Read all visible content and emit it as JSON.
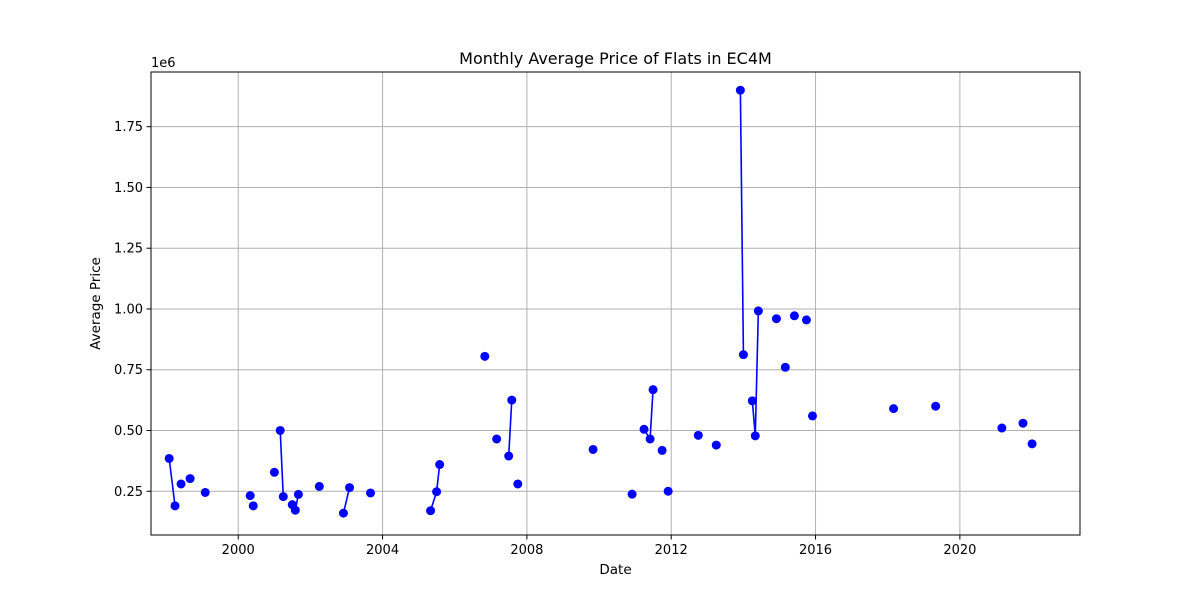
{
  "chart_data": {
    "type": "line",
    "title": "Monthly Average Price of Flats in EC4M",
    "xlabel": "Date",
    "ylabel": "Average Price",
    "y_offset_text": "1e6",
    "grid": true,
    "xlim": [
      "1997-08-01",
      "2023-05-01"
    ],
    "ylim": [
      0.07,
      1.975
    ],
    "x_ticks": [
      "2000-01-01",
      "2004-01-01",
      "2008-01-01",
      "2012-01-01",
      "2016-01-01",
      "2020-01-01"
    ],
    "x_tick_labels": [
      "2000",
      "2004",
      "2008",
      "2012",
      "2016",
      "2020"
    ],
    "y_ticks": [
      0.25,
      0.5,
      0.75,
      1.0,
      1.25,
      1.5,
      1.75
    ],
    "y_tick_labels": [
      "0.25",
      "0.50",
      "0.75",
      "1.00",
      "1.25",
      "1.50",
      "1.75"
    ],
    "series": [
      {
        "color": "#0000ff",
        "marker": "circle",
        "segments": [
          [
            [
              "1998-02-01",
              0.385
            ],
            [
              "1998-04-01",
              0.19
            ]
          ],
          [
            [
              "1998-06-01",
              0.28
            ]
          ],
          [
            [
              "1998-09-01",
              0.302
            ]
          ],
          [
            [
              "1999-02-01",
              0.245
            ]
          ],
          [
            [
              "2000-05-01",
              0.232
            ]
          ],
          [
            [
              "2000-06-01",
              0.19
            ]
          ],
          [
            [
              "2001-01-01",
              0.328
            ]
          ],
          [
            [
              "2001-03-01",
              0.5
            ],
            [
              "2001-04-01",
              0.228
            ]
          ],
          [
            [
              "2001-07-01",
              0.195
            ],
            [
              "2001-08-01",
              0.172
            ],
            [
              "2001-09-01",
              0.237
            ]
          ],
          [
            [
              "2002-04-01",
              0.27
            ]
          ],
          [
            [
              "2002-12-01",
              0.16
            ],
            [
              "2003-02-01",
              0.265
            ]
          ],
          [
            [
              "2003-09-01",
              0.243
            ]
          ],
          [
            [
              "2005-05-01",
              0.17
            ],
            [
              "2005-07-01",
              0.248
            ],
            [
              "2005-08-01",
              0.36
            ]
          ],
          [
            [
              "2006-11-01",
              0.805
            ]
          ],
          [
            [
              "2007-03-01",
              0.465
            ]
          ],
          [
            [
              "2007-07-01",
              0.395
            ],
            [
              "2007-08-01",
              0.625
            ]
          ],
          [
            [
              "2007-10-01",
              0.28
            ]
          ],
          [
            [
              "2009-11-01",
              0.422
            ]
          ],
          [
            [
              "2010-12-01",
              0.238
            ]
          ],
          [
            [
              "2011-04-01",
              0.505
            ],
            [
              "2011-06-01",
              0.465
            ],
            [
              "2011-07-01",
              0.668
            ]
          ],
          [
            [
              "2011-10-01",
              0.418
            ]
          ],
          [
            [
              "2011-12-01",
              0.25
            ]
          ],
          [
            [
              "2012-10-01",
              0.48
            ]
          ],
          [
            [
              "2013-04-01",
              0.44
            ]
          ],
          [
            [
              "2013-12-01",
              1.9
            ],
            [
              "2014-01-01",
              0.812
            ]
          ],
          [
            [
              "2014-04-01",
              0.622
            ],
            [
              "2014-05-01",
              0.478
            ],
            [
              "2014-06-01",
              0.992
            ]
          ],
          [
            [
              "2014-12-01",
              0.96
            ]
          ],
          [
            [
              "2015-03-01",
              0.76
            ]
          ],
          [
            [
              "2015-06-01",
              0.972
            ]
          ],
          [
            [
              "2015-10-01",
              0.955
            ]
          ],
          [
            [
              "2015-12-01",
              0.56
            ]
          ],
          [
            [
              "2018-03-01",
              0.59
            ]
          ],
          [
            [
              "2019-05-01",
              0.6
            ]
          ],
          [
            [
              "2021-03-01",
              0.51
            ]
          ],
          [
            [
              "2021-10-01",
              0.53
            ]
          ],
          [
            [
              "2022-01-01",
              0.445
            ]
          ]
        ]
      }
    ]
  }
}
